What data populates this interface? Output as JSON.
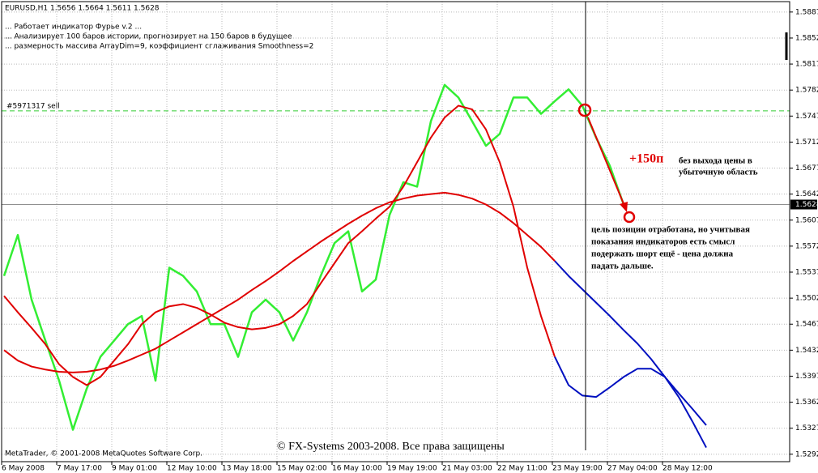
{
  "chart_data": {
    "type": "line",
    "header": "EURUSD,H1  1.5656 1.5664 1.5611 1.5628",
    "comments": [
      "... Работает индикатор Фурье v.2    ...",
      "... Анализирует 100 баров истории, прогнозирует на 150 баров в будущее",
      "... размерность массива ArrayDim=9, коэффициент сглаживания Smoothness=2"
    ],
    "order_label": "#5971317 sell",
    "order_level": 1.5754,
    "current_price": 1.5628,
    "annotations": {
      "profit": "+150п",
      "note1": [
        "без выхода цены в",
        "убыточную область"
      ],
      "note2": [
        "цель позиции отработана, но учитывая",
        "показания индикаторов есть смысл",
        "подержать шорт ещё - цена должна",
        "падать дальше."
      ],
      "copyright": "© FX-Systems 2003-2008. Все права защищены",
      "platform": "MetaTrader, © 2001-2008 MetaQuotes Software Corp."
    },
    "categories": [
      "6 May 2008",
      null,
      null,
      null,
      "7 May 17:00",
      null,
      null,
      null,
      "9 May 01:00",
      null,
      null,
      null,
      "12 May 10:00",
      null,
      null,
      null,
      "13 May 18:00",
      null,
      null,
      null,
      "15 May 02:00",
      null,
      null,
      null,
      "16 May 10:00",
      null,
      null,
      null,
      "19 May 19:00",
      null,
      null,
      null,
      "21 May 03:00",
      null,
      null,
      null,
      "22 May 11:00",
      null,
      null,
      null,
      "23 May 19:00",
      null,
      null,
      null,
      "27 May 04:00",
      null,
      null,
      null,
      "28 May 12:00",
      null,
      null,
      null
    ],
    "series": [
      {
        "color": "#33ee33",
        "values": [
          1.5532,
          1.5587,
          1.55,
          1.5445,
          1.5391,
          1.5325,
          1.538,
          1.5423,
          1.5445,
          1.5467,
          1.5478,
          1.5391,
          1.5543,
          1.5532,
          1.5511,
          1.5467,
          1.5467,
          1.5423,
          1.5483,
          1.55,
          1.5483,
          1.5445,
          1.5483,
          1.5532,
          1.5576,
          1.5592,
          1.5511,
          1.5527,
          1.5614,
          1.5658,
          1.5652,
          1.574,
          1.5789,
          1.5772,
          1.574,
          1.5707,
          1.5723,
          1.5772,
          1.5772,
          1.575,
          1.5767,
          1.5783,
          1.5761,
          1.5718,
          1.568,
          1.5628,
          null,
          null,
          null,
          null,
          null,
          null
        ]
      },
      {
        "color": "#e00000",
        "values": [
          1.5505,
          1.5483,
          1.5462,
          1.544,
          1.5413,
          1.5396,
          1.5385,
          1.5396,
          1.5418,
          1.544,
          1.5467,
          1.5483,
          1.5491,
          1.5494,
          1.5489,
          1.548,
          1.5469,
          1.5463,
          1.546,
          1.5462,
          1.5467,
          1.5478,
          1.5494,
          1.5522,
          1.5549,
          1.5576,
          1.5592,
          1.5609,
          1.5625,
          1.5652,
          1.5685,
          1.5718,
          1.5745,
          1.5761,
          1.5756,
          1.5729,
          1.5685,
          1.5625,
          1.5543,
          1.5478,
          1.5423,
          null,
          null,
          null,
          null,
          null,
          null,
          null,
          null,
          null,
          null,
          null
        ]
      },
      {
        "color": "#e00000",
        "values": [
          1.5432,
          1.5418,
          1.541,
          1.5406,
          1.5403,
          1.5402,
          1.5403,
          1.5406,
          1.5411,
          1.5418,
          1.5426,
          1.5434,
          1.5445,
          1.5456,
          1.5467,
          1.5478,
          1.5489,
          1.55,
          1.5513,
          1.5525,
          1.5538,
          1.5552,
          1.5565,
          1.5578,
          1.559,
          1.5602,
          1.5613,
          1.5623,
          1.5631,
          1.5636,
          1.564,
          1.5642,
          1.5644,
          1.5641,
          1.5636,
          1.5628,
          1.5617,
          1.5603,
          1.5587,
          1.5571,
          1.5552,
          null,
          null,
          null,
          null,
          null,
          null,
          null,
          null,
          null,
          null,
          null
        ]
      },
      {
        "color": "#0010c0",
        "values": [
          null,
          null,
          null,
          null,
          null,
          null,
          null,
          null,
          null,
          null,
          null,
          null,
          null,
          null,
          null,
          null,
          null,
          null,
          null,
          null,
          null,
          null,
          null,
          null,
          null,
          null,
          null,
          null,
          null,
          null,
          null,
          null,
          null,
          null,
          null,
          null,
          null,
          null,
          null,
          null,
          1.5423,
          1.5385,
          1.5371,
          1.5369,
          1.5382,
          1.5396,
          1.5407,
          1.5407,
          1.5396,
          1.5369,
          1.5336,
          1.5301
        ]
      },
      {
        "color": "#0010c0",
        "values": [
          null,
          null,
          null,
          null,
          null,
          null,
          null,
          null,
          null,
          null,
          null,
          null,
          null,
          null,
          null,
          null,
          null,
          null,
          null,
          null,
          null,
          null,
          null,
          null,
          null,
          null,
          null,
          null,
          null,
          null,
          null,
          null,
          null,
          null,
          null,
          null,
          null,
          null,
          null,
          null,
          1.5552,
          1.5532,
          1.5514,
          1.5496,
          1.5478,
          1.5459,
          1.5441,
          1.542,
          1.5396,
          1.5374,
          1.5353,
          1.5331
        ]
      }
    ],
    "ylim": [
      1.5282,
      1.5901
    ],
    "yticks": [
      1.5887,
      1.5852,
      1.5817,
      1.5782,
      1.5747,
      1.5712,
      1.5677,
      1.5642,
      1.5607,
      1.5572,
      1.5537,
      1.5502,
      1.5467,
      1.5432,
      1.5397,
      1.5362,
      1.5327,
      1.5292
    ],
    "grid": true
  }
}
